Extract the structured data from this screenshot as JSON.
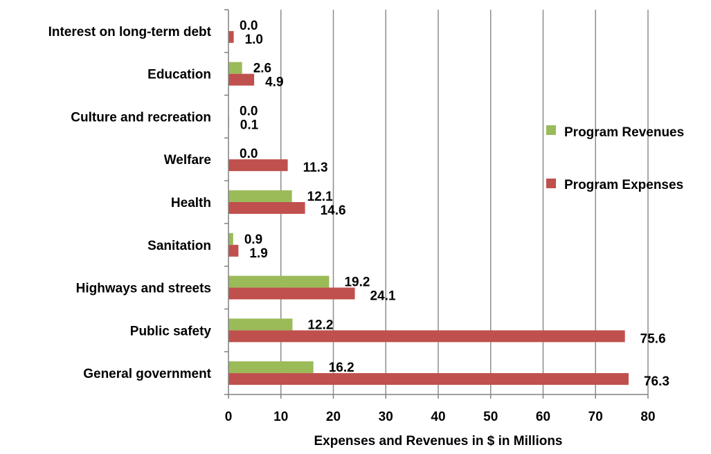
{
  "chart_data": {
    "type": "bar",
    "orientation": "horizontal",
    "categories": [
      "Interest on long-term debt",
      "Education",
      "Culture and recreation",
      "Welfare",
      "Health",
      "Sanitation",
      "Highways and streets",
      "Public safety",
      "General government"
    ],
    "series": [
      {
        "name": "Program Revenues",
        "color": "#9BBB59",
        "values": [
          0.0,
          2.6,
          0.0,
          0.0,
          12.1,
          0.9,
          19.2,
          12.2,
          16.2
        ],
        "labels": [
          "0.0",
          "2.6",
          "0.0",
          "0.0",
          "12.1",
          "0.9",
          "19.2",
          "12.2",
          "16.2"
        ]
      },
      {
        "name": "Program Expenses",
        "color": "#C0504D",
        "values": [
          1.0,
          4.9,
          0.1,
          11.3,
          14.6,
          1.9,
          24.1,
          75.6,
          76.3
        ],
        "labels": [
          "1.0",
          "4.9",
          "0.1",
          "11.3",
          "14.6",
          "1.9",
          "24.1",
          "75.6",
          "76.3"
        ]
      }
    ],
    "xlabel": "Expenses and Revenues in $ in Millions",
    "ylabel": "",
    "title": "",
    "xlim": [
      0,
      80
    ],
    "xticks": [
      "0",
      "10",
      "20",
      "30",
      "40",
      "50",
      "60",
      "70",
      "80"
    ],
    "grid": "vertical",
    "legend_position": "right"
  }
}
